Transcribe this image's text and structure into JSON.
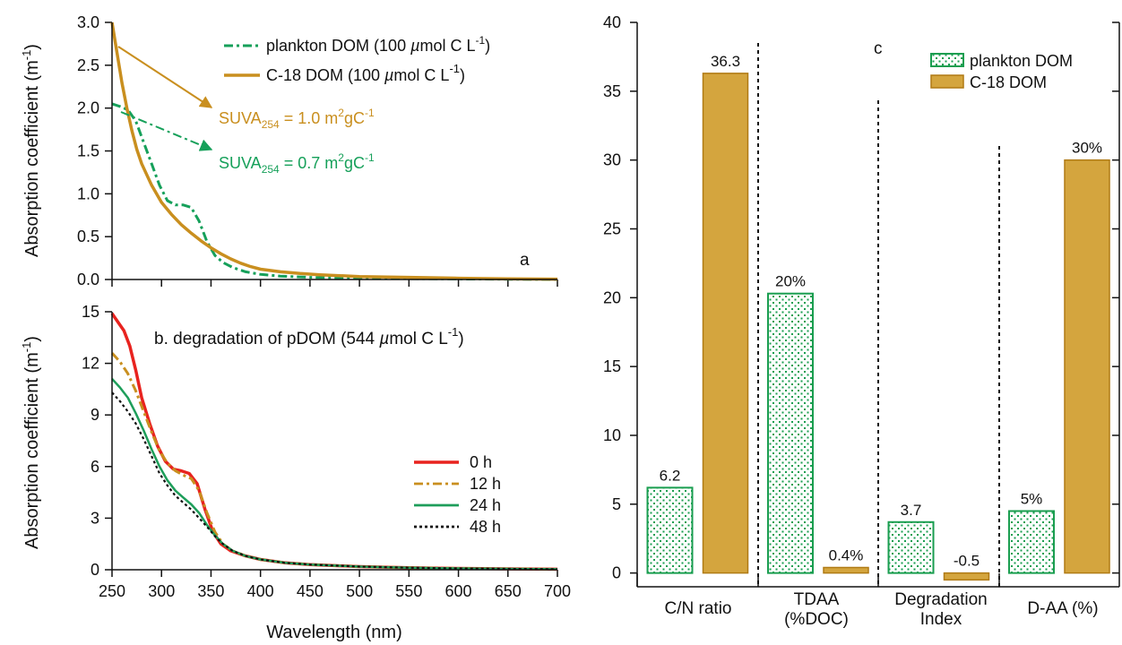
{
  "chart_data": [
    {
      "panel": "a",
      "type": "line",
      "xlabel": "",
      "ylabel": "Absorption coefficient (m⁻¹)",
      "xlim": [
        250,
        700
      ],
      "ylim": [
        0,
        3.0
      ],
      "x_ticks": [
        250,
        300,
        350,
        400,
        450,
        500,
        550,
        600,
        650,
        700
      ],
      "y_ticks": [
        0.0,
        0.5,
        1.0,
        1.5,
        2.0,
        2.5,
        3.0
      ],
      "y_tick_labels": [
        "0.0",
        "0.5",
        "1.0",
        "1.5",
        "2.0",
        "2.5",
        "3.0"
      ],
      "series": [
        {
          "name": "plankton DOM (100 µmol C L⁻¹)",
          "color": "#16a05a",
          "style": "dashdot",
          "points": [
            [
              250,
              2.05
            ],
            [
              258,
              2.02
            ],
            [
              266,
              1.98
            ],
            [
              274,
              1.85
            ],
            [
              282,
              1.6
            ],
            [
              290,
              1.35
            ],
            [
              298,
              1.1
            ],
            [
              306,
              0.92
            ],
            [
              314,
              0.87
            ],
            [
              322,
              0.87
            ],
            [
              330,
              0.84
            ],
            [
              338,
              0.68
            ],
            [
              346,
              0.44
            ],
            [
              354,
              0.28
            ],
            [
              362,
              0.2
            ],
            [
              372,
              0.14
            ],
            [
              385,
              0.09
            ],
            [
              400,
              0.06
            ],
            [
              420,
              0.04
            ],
            [
              450,
              0.025
            ],
            [
              500,
              0.015
            ],
            [
              550,
              0.01
            ],
            [
              600,
              0.006
            ],
            [
              650,
              0.003
            ],
            [
              700,
              0.0
            ]
          ]
        },
        {
          "name": "C-18 DOM (100 µmol C L⁻¹)",
          "color": "#c98f1f",
          "style": "solid",
          "points": [
            [
              250,
              3.0
            ],
            [
              255,
              2.65
            ],
            [
              260,
              2.3
            ],
            [
              265,
              2.0
            ],
            [
              270,
              1.74
            ],
            [
              275,
              1.52
            ],
            [
              280,
              1.35
            ],
            [
              290,
              1.1
            ],
            [
              300,
              0.9
            ],
            [
              310,
              0.76
            ],
            [
              320,
              0.64
            ],
            [
              330,
              0.54
            ],
            [
              340,
              0.45
            ],
            [
              350,
              0.37
            ],
            [
              360,
              0.3
            ],
            [
              370,
              0.24
            ],
            [
              380,
              0.19
            ],
            [
              390,
              0.15
            ],
            [
              400,
              0.12
            ],
            [
              420,
              0.09
            ],
            [
              440,
              0.07
            ],
            [
              460,
              0.055
            ],
            [
              480,
              0.045
            ],
            [
              500,
              0.035
            ],
            [
              550,
              0.025
            ],
            [
              600,
              0.015
            ],
            [
              650,
              0.008
            ],
            [
              700,
              0.004
            ]
          ]
        }
      ],
      "annotations": [
        {
          "name": "suva-c18",
          "main": "SUVA",
          "sub": "254",
          "rest": " = 1.0 m",
          "sup": "2",
          "tail": "gC",
          "sup2": "-1",
          "color": "#c98f1f"
        },
        {
          "name": "suva-plankton",
          "main": "SUVA",
          "sub": "254",
          "rest": " = 0.7 m",
          "sup": "2",
          "tail": "gC",
          "sup2": "-1",
          "color": "#16a05a"
        }
      ],
      "panel_letter": "a",
      "legend_placement": "top-right"
    },
    {
      "panel": "b",
      "type": "line",
      "title": "b. degradation of pDOM (544 µmol C L⁻¹)",
      "xlabel": "Wavelength (nm)",
      "ylabel": "Absorption coefficient (m⁻¹)",
      "xlim": [
        250,
        700
      ],
      "ylim": [
        0,
        15
      ],
      "x_ticks": [
        250,
        300,
        350,
        400,
        450,
        500,
        550,
        600,
        650,
        700
      ],
      "y_ticks": [
        0,
        3,
        6,
        9,
        12,
        15
      ],
      "y_tick_labels": [
        "0",
        "3",
        "6",
        "9",
        "12",
        "15"
      ],
      "series": [
        {
          "name": "0 h",
          "color": "#e8231f",
          "style": "solid",
          "points": [
            [
              250,
              14.9
            ],
            [
              256,
              14.4
            ],
            [
              262,
              13.9
            ],
            [
              268,
              13.0
            ],
            [
              274,
              11.6
            ],
            [
              280,
              10.0
            ],
            [
              288,
              8.5
            ],
            [
              296,
              7.2
            ],
            [
              304,
              6.3
            ],
            [
              312,
              5.85
            ],
            [
              320,
              5.75
            ],
            [
              328,
              5.6
            ],
            [
              336,
              5.0
            ],
            [
              344,
              3.5
            ],
            [
              352,
              2.2
            ],
            [
              360,
              1.5
            ],
            [
              370,
              1.1
            ],
            [
              385,
              0.8
            ],
            [
              400,
              0.6
            ],
            [
              425,
              0.4
            ],
            [
              450,
              0.3
            ],
            [
              500,
              0.18
            ],
            [
              550,
              0.12
            ],
            [
              600,
              0.08
            ],
            [
              650,
              0.05
            ],
            [
              700,
              0.03
            ]
          ]
        },
        {
          "name": "12 h",
          "color": "#c98f1f",
          "style": "dashdot",
          "points": [
            [
              250,
              12.6
            ],
            [
              258,
              12.1
            ],
            [
              266,
              11.4
            ],
            [
              274,
              10.4
            ],
            [
              282,
              9.2
            ],
            [
              290,
              8.0
            ],
            [
              298,
              6.9
            ],
            [
              306,
              6.2
            ],
            [
              314,
              5.75
            ],
            [
              322,
              5.5
            ],
            [
              330,
              5.3
            ],
            [
              338,
              4.6
            ],
            [
              346,
              3.3
            ],
            [
              354,
              2.2
            ],
            [
              362,
              1.5
            ],
            [
              372,
              1.1
            ],
            [
              385,
              0.8
            ],
            [
              400,
              0.6
            ],
            [
              425,
              0.4
            ],
            [
              450,
              0.3
            ],
            [
              500,
              0.18
            ],
            [
              550,
              0.12
            ],
            [
              600,
              0.08
            ],
            [
              650,
              0.05
            ],
            [
              700,
              0.03
            ]
          ]
        },
        {
          "name": "24 h",
          "color": "#1e9e5a",
          "style": "solid",
          "points": [
            [
              250,
              11.1
            ],
            [
              258,
              10.6
            ],
            [
              266,
              10.0
            ],
            [
              274,
              9.1
            ],
            [
              282,
              8.1
            ],
            [
              290,
              7.0
            ],
            [
              298,
              6.0
            ],
            [
              306,
              5.2
            ],
            [
              314,
              4.6
            ],
            [
              322,
              4.2
            ],
            [
              330,
              3.8
            ],
            [
              338,
              3.3
            ],
            [
              346,
              2.6
            ],
            [
              354,
              2.0
            ],
            [
              362,
              1.5
            ],
            [
              372,
              1.1
            ],
            [
              385,
              0.8
            ],
            [
              400,
              0.6
            ],
            [
              425,
              0.4
            ],
            [
              450,
              0.3
            ],
            [
              500,
              0.18
            ],
            [
              550,
              0.12
            ],
            [
              600,
              0.08
            ],
            [
              650,
              0.05
            ],
            [
              700,
              0.03
            ]
          ]
        },
        {
          "name": "48 h",
          "color": "#111111",
          "style": "dotted",
          "points": [
            [
              250,
              10.3
            ],
            [
              258,
              9.8
            ],
            [
              266,
              9.2
            ],
            [
              274,
              8.5
            ],
            [
              282,
              7.6
            ],
            [
              290,
              6.6
            ],
            [
              298,
              5.6
            ],
            [
              306,
              4.9
            ],
            [
              314,
              4.3
            ],
            [
              322,
              3.9
            ],
            [
              330,
              3.5
            ],
            [
              338,
              3.0
            ],
            [
              346,
              2.5
            ],
            [
              354,
              1.95
            ],
            [
              362,
              1.5
            ],
            [
              372,
              1.1
            ],
            [
              385,
              0.8
            ],
            [
              400,
              0.6
            ],
            [
              425,
              0.4
            ],
            [
              450,
              0.3
            ],
            [
              500,
              0.18
            ],
            [
              550,
              0.12
            ],
            [
              600,
              0.08
            ],
            [
              650,
              0.05
            ],
            [
              700,
              0.03
            ]
          ]
        }
      ],
      "legend_placement": "right"
    },
    {
      "panel": "c",
      "type": "bar",
      "ylim": [
        -1,
        40
      ],
      "y_ticks": [
        0,
        5,
        10,
        15,
        20,
        25,
        30,
        35,
        40
      ],
      "categories": [
        {
          "lines": [
            "C/N ratio"
          ]
        },
        {
          "lines": [
            "TDAA",
            "(%DOC)"
          ]
        },
        {
          "lines": [
            "Degradation",
            "Index"
          ]
        },
        {
          "lines": [
            "D-AA (%)"
          ]
        }
      ],
      "series": [
        {
          "name": "plankton DOM",
          "color": "#1a9e50",
          "pattern": "dotted",
          "values": [
            6.2,
            20.3,
            3.7,
            4.5
          ],
          "labels": [
            "6.2",
            "20%",
            "3.7",
            "5%"
          ]
        },
        {
          "name": "C-18 DOM",
          "color": "#d4a53e",
          "edge": "#b07a14",
          "values": [
            36.3,
            0.4,
            -0.5,
            30
          ],
          "labels": [
            "36.3",
            "0.4%",
            "-0.5",
            "30%"
          ]
        }
      ],
      "panel_letter": "c",
      "legend_placement": "top-right"
    }
  ]
}
